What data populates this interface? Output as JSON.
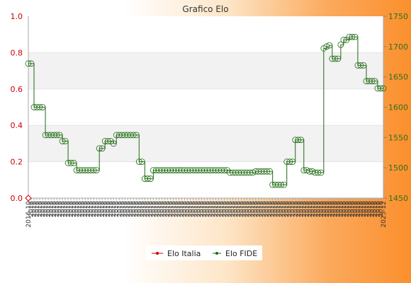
{
  "chart_data": {
    "type": "line",
    "title": "Grafico Elo",
    "y_left": {
      "min": 0.0,
      "max": 1.0,
      "ticks": [
        "0.0",
        "0.2",
        "0.4",
        "0.6",
        "0.8",
        "1.0"
      ]
    },
    "y_right": {
      "min": 1450,
      "max": 1750,
      "ticks": [
        "1450",
        "1500",
        "1550",
        "1600",
        "1650",
        "1700",
        "1750"
      ]
    },
    "x_label_first": "2016-10",
    "x_label_last": "2025-12",
    "grid": "horizontal bands",
    "legend_position": "bottom",
    "series": [
      {
        "name": "Elo Italia",
        "axis": "left",
        "color": "#cc0000",
        "values": [
          0
        ]
      },
      {
        "name": "Elo FIDE",
        "axis": "right",
        "color": "#1f6b12",
        "values": [
          1672,
          1672,
          1600,
          1600,
          1600,
          1600,
          1554,
          1554,
          1554,
          1554,
          1554,
          1554,
          1544,
          1544,
          1508,
          1508,
          1508,
          1496,
          1496,
          1496,
          1496,
          1496,
          1496,
          1496,
          1496,
          1532,
          1532,
          1544,
          1544,
          1544,
          1540,
          1554,
          1554,
          1554,
          1554,
          1554,
          1554,
          1554,
          1554,
          1510,
          1510,
          1482,
          1482,
          1482,
          1496,
          1496,
          1496,
          1496,
          1496,
          1496,
          1496,
          1496,
          1496,
          1496,
          1496,
          1496,
          1496,
          1496,
          1496,
          1496,
          1496,
          1496,
          1496,
          1496,
          1496,
          1496,
          1496,
          1496,
          1496,
          1496,
          1496,
          1492,
          1492,
          1492,
          1492,
          1492,
          1492,
          1492,
          1492,
          1492,
          1494,
          1494,
          1494,
          1494,
          1494,
          1494,
          1472,
          1472,
          1472,
          1472,
          1472,
          1510,
          1510,
          1510,
          1546,
          1546,
          1546,
          1496,
          1496,
          1494,
          1494,
          1492,
          1492,
          1492,
          1697,
          1700,
          1702,
          1680,
          1680,
          1680,
          1703,
          1711,
          1711,
          1716,
          1716,
          1716,
          1669,
          1669,
          1669,
          1643,
          1643,
          1643,
          1643,
          1631,
          1631,
          1631
        ]
      }
    ]
  }
}
